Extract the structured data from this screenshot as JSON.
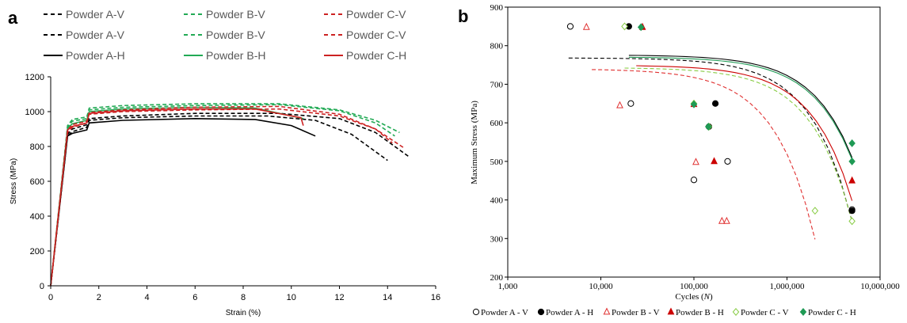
{
  "chart_data": [
    {
      "panel_label": "a",
      "type": "line",
      "xlabel": "Strain (%)",
      "ylabel": "Stress (MPa)",
      "xlim": [
        0,
        16
      ],
      "ylim": [
        0,
        1200
      ],
      "x_ticks": [
        "0",
        "2",
        "4",
        "6",
        "8",
        "10",
        "12",
        "14",
        "16"
      ],
      "y_ticks": [
        "0",
        "200",
        "400",
        "600",
        "800",
        "1000",
        "1200"
      ],
      "legend_position": "top",
      "series": [
        {
          "name": "Powder A-V",
          "color": "#000000",
          "dash": true,
          "x": [
            0,
            0.7,
            0.9,
            1.5,
            1.6,
            3,
            6,
            9,
            11,
            12.5,
            14
          ],
          "y": [
            0,
            860,
            885,
            910,
            950,
            965,
            975,
            975,
            950,
            870,
            720
          ]
        },
        {
          "name": "Powder A-V",
          "color": "#000000",
          "dash": true,
          "x": [
            0,
            0.7,
            0.9,
            1.5,
            1.6,
            3,
            6,
            9.5,
            12,
            13.5,
            14.9
          ],
          "y": [
            0,
            870,
            900,
            925,
            960,
            975,
            990,
            990,
            960,
            880,
            740
          ]
        },
        {
          "name": "Powder A-H",
          "color": "#000000",
          "dash": false,
          "x": [
            0,
            0.7,
            0.9,
            1.5,
            1.6,
            3,
            6,
            8.5,
            10,
            11
          ],
          "y": [
            0,
            860,
            875,
            895,
            935,
            950,
            960,
            955,
            920,
            860
          ]
        },
        {
          "name": "Powder B-V",
          "color": "#22aa55",
          "dash": true,
          "x": [
            0,
            0.7,
            0.9,
            1.5,
            1.6,
            3,
            6,
            9.5,
            12,
            13.5,
            14.3
          ],
          "y": [
            0,
            910,
            945,
            960,
            1010,
            1025,
            1035,
            1040,
            1005,
            935,
            860
          ]
        },
        {
          "name": "Powder B-V",
          "color": "#22aa55",
          "dash": true,
          "x": [
            0,
            0.7,
            0.9,
            1.5,
            1.6,
            3,
            6,
            9.5,
            12,
            13.5,
            14.5
          ],
          "y": [
            0,
            920,
            955,
            970,
            1020,
            1035,
            1045,
            1045,
            1010,
            950,
            880
          ]
        },
        {
          "name": "Powder B-H",
          "color": "#22aa55",
          "dash": false,
          "x": [
            0,
            0.7,
            0.9,
            1.5,
            1.6,
            3,
            6,
            8.5,
            10.5
          ],
          "y": [
            0,
            905,
            930,
            950,
            1000,
            1015,
            1025,
            1020,
            960
          ]
        },
        {
          "name": "Powder C-V",
          "color": "#cc2222",
          "dash": true,
          "x": [
            0,
            0.7,
            0.9,
            1.5,
            1.6,
            3,
            6,
            9.5,
            12,
            13.5,
            14.7
          ],
          "y": [
            0,
            895,
            925,
            945,
            995,
            1010,
            1025,
            1030,
            985,
            900,
            790
          ]
        },
        {
          "name": "Powder C-V",
          "color": "#cc2222",
          "dash": true,
          "x": [
            0,
            0.7,
            0.9,
            1.5,
            1.6,
            3,
            6,
            9.5,
            12,
            13.5,
            14.2
          ],
          "y": [
            0,
            880,
            910,
            935,
            985,
            1000,
            1010,
            1015,
            975,
            900,
            820
          ]
        },
        {
          "name": "Powder C-H",
          "color": "#cc2222",
          "dash": false,
          "x": [
            0,
            0.7,
            0.9,
            1.5,
            1.6,
            3,
            6,
            8.5,
            10.4,
            10.5
          ],
          "y": [
            0,
            895,
            915,
            935,
            990,
            1005,
            1015,
            1015,
            965,
            920
          ]
        }
      ]
    },
    {
      "panel_label": "b",
      "type": "scatter",
      "xlabel": "Cycles (N)",
      "xlabel_prefix": "Cycles (",
      "xlabel_italic": "N",
      "xlabel_suffix": ")",
      "ylabel": "Maximum Stress (MPa)",
      "x_scale": "log",
      "xlim": [
        1000,
        10000000
      ],
      "ylim": [
        200,
        900
      ],
      "x_ticks": [
        "1,000",
        "10,000",
        "100,000",
        "1,000,000",
        "10,000,000"
      ],
      "y_ticks": [
        "200",
        "300",
        "400",
        "500",
        "600",
        "700",
        "800",
        "900"
      ],
      "legend_position": "bottom",
      "series": [
        {
          "name": "Powder A - V",
          "marker": "circle-open",
          "color": "#000000",
          "x": [
            4700,
            21000,
            100000,
            230000,
            5000000
          ],
          "y": [
            850,
            650,
            452,
            500,
            375
          ],
          "fit": {
            "x1": 4500,
            "x2": 5000000,
            "y1": 768,
            "y2": 345
          }
        },
        {
          "name": "Powder A - H",
          "marker": "circle-filled",
          "color": "#000000",
          "x": [
            20000,
            170000,
            145000,
            5000000
          ],
          "y": [
            850,
            650,
            590,
            372
          ],
          "fit": {
            "x1": 20000,
            "x2": 5000000,
            "y1": 775,
            "y2": 510
          }
        },
        {
          "name": "Powder B - V",
          "marker": "triangle-open",
          "color": "#e03030",
          "x": [
            7000,
            16000,
            105000,
            200000,
            225000
          ],
          "y": [
            848,
            645,
            498,
            345,
            345
          ],
          "fit": {
            "x1": 8000,
            "x2": 2000000,
            "y1": 738,
            "y2": 298
          }
        },
        {
          "name": "Powder B - H",
          "marker": "triangle-filled",
          "color": "#cc0000",
          "x": [
            28000,
            100000,
            165000,
            5000000
          ],
          "y": [
            848,
            648,
            500,
            450
          ],
          "fit": {
            "x1": 24000,
            "x2": 5000000,
            "y1": 748,
            "y2": 398
          }
        },
        {
          "name": "Powder C - V",
          "marker": "diamond-open",
          "color": "#88cc44",
          "x": [
            18000,
            100000,
            145000,
            2000000,
            5000000
          ],
          "y": [
            850,
            650,
            590,
            372,
            345
          ],
          "fit": {
            "x1": 18000,
            "x2": 5000000,
            "y1": 742,
            "y2": 345
          }
        },
        {
          "name": "Powder C - H",
          "marker": "diamond-filled",
          "color": "#1f9a55",
          "x": [
            27000,
            100000,
            143000,
            5000000,
            5000000
          ],
          "y": [
            848,
            648,
            590,
            547,
            500
          ],
          "fit": {
            "x1": 20000,
            "x2": 5000000,
            "y1": 770,
            "y2": 505
          }
        }
      ]
    }
  ]
}
